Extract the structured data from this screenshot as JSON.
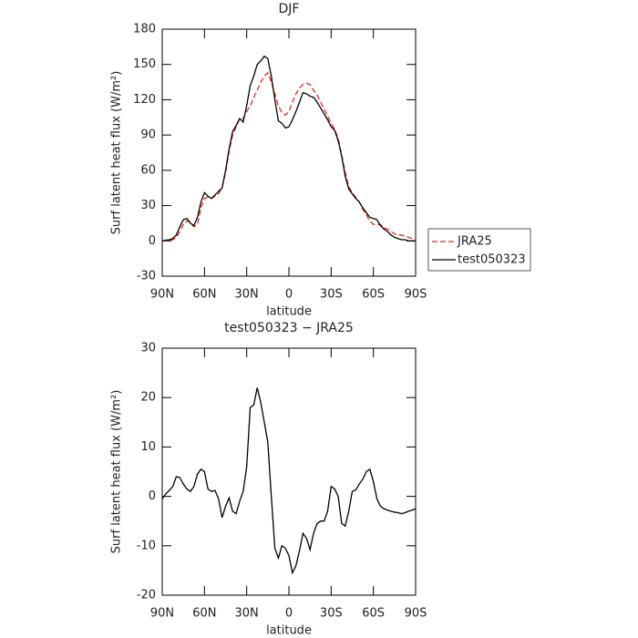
{
  "chart_data": [
    {
      "type": "line",
      "title": "DJF",
      "xlabel": "latitude",
      "ylabel": "Surf latent heat flux (W/m²)",
      "x": [
        90,
        87.5,
        85,
        82.5,
        80,
        77.5,
        75,
        72.5,
        70,
        67.5,
        65,
        62.5,
        60,
        57.5,
        55,
        52.5,
        50,
        47.5,
        45,
        42.5,
        40,
        37.5,
        35,
        32.5,
        30,
        27.5,
        25,
        22.5,
        20,
        17.5,
        15,
        12.5,
        10,
        7.5,
        5,
        2.5,
        0,
        -2.5,
        -5,
        -7.5,
        -10,
        -12.5,
        -15,
        -17.5,
        -20,
        -22.5,
        -25,
        -27.5,
        -30,
        -32.5,
        -35,
        -37.5,
        -40,
        -42.5,
        -45,
        -47.5,
        -50,
        -52.5,
        -55,
        -57.5,
        -60,
        -62.5,
        -65,
        -67.5,
        -70,
        -72.5,
        -75,
        -77.5,
        -80,
        -82.5,
        -85,
        -87.5,
        -90
      ],
      "series": [
        {
          "name": "JRA25",
          "color": "#e8261c",
          "line_style": "dashed",
          "values": [
            0,
            0,
            0.5,
            1,
            3,
            8,
            14,
            17,
            16,
            12,
            14,
            28,
            36,
            37,
            36,
            38,
            40,
            45,
            58,
            76,
            90,
            97,
            104,
            104,
            110,
            115,
            122,
            128,
            135,
            140,
            143,
            135,
            125,
            115,
            109,
            107,
            110,
            118,
            125,
            130,
            133,
            134,
            133,
            128,
            124,
            118,
            112,
            106,
            100,
            95,
            87,
            73,
            58,
            46,
            41,
            37,
            33,
            27,
            22,
            17,
            14,
            14,
            14,
            11,
            10,
            8,
            6,
            5,
            5,
            4,
            3,
            2,
            2
          ]
        },
        {
          "name": "test050323",
          "color": "#000000",
          "line_style": "solid",
          "values": [
            0,
            0.5,
            1,
            2,
            5,
            12,
            18,
            19,
            15,
            13,
            20,
            33,
            41,
            38,
            36,
            39,
            42,
            45,
            60,
            78,
            93,
            98,
            104,
            101,
            115,
            132,
            140,
            150,
            153,
            157,
            155,
            140,
            120,
            102,
            100,
            96,
            97,
            103,
            110,
            118,
            126,
            125,
            123,
            122,
            118,
            113,
            108,
            103,
            97,
            94,
            85,
            72,
            55,
            44,
            40,
            36,
            33,
            28,
            24,
            20,
            19,
            18,
            13,
            10,
            8,
            5,
            3,
            2,
            1,
            1,
            0,
            0,
            0
          ]
        }
      ],
      "xlim": [
        90,
        -90
      ],
      "xticks": [
        {
          "value": 90,
          "label": "90N"
        },
        {
          "value": 60,
          "label": "60N"
        },
        {
          "value": 30,
          "label": "30N"
        },
        0,
        {
          "value": -30,
          "label": "30S"
        },
        {
          "value": -60,
          "label": "60S"
        },
        {
          "value": -90,
          "label": "90S"
        }
      ],
      "ylim": [
        -30,
        180
      ],
      "yticks": [
        -30,
        0,
        30,
        60,
        90,
        120,
        150,
        180
      ],
      "legend": "right"
    },
    {
      "type": "line",
      "title": "test050323 − JRA25",
      "xlabel": "latitude",
      "ylabel": "Surf latent heat flux (W/m²)",
      "x": [
        90,
        87.5,
        85,
        82.5,
        80,
        77.5,
        75,
        72.5,
        70,
        67.5,
        65,
        62.5,
        60,
        57.5,
        55,
        52.5,
        50,
        47.5,
        45,
        42.5,
        40,
        37.5,
        35,
        32.5,
        30,
        27.5,
        25,
        22.5,
        20,
        17.5,
        15,
        12.5,
        10,
        7.5,
        5,
        2.5,
        0,
        -2.5,
        -5,
        -7.5,
        -10,
        -12.5,
        -15,
        -17.5,
        -20,
        -22.5,
        -25,
        -27.5,
        -30,
        -32.5,
        -35,
        -37.5,
        -40,
        -42.5,
        -45,
        -47.5,
        -50,
        -52.5,
        -55,
        -57.5,
        -60,
        -62.5,
        -65,
        -67.5,
        -70,
        -72.5,
        -75,
        -77.5,
        -80,
        -82.5,
        -85,
        -87.5,
        -90
      ],
      "series": [
        {
          "color": "#000000",
          "line_style": "solid",
          "values": [
            -0.5,
            0.5,
            1.2,
            2,
            4,
            3.8,
            2.5,
            1.5,
            1,
            2,
            4.5,
            5.5,
            5,
            1.5,
            1,
            1.2,
            -0.5,
            -4.3,
            -2,
            -0.3,
            -3,
            -3.5,
            -1,
            1,
            6,
            18,
            18.5,
            22,
            19,
            15,
            11,
            0,
            -10.5,
            -12.5,
            -10,
            -10.5,
            -12,
            -15.5,
            -14,
            -11,
            -7.5,
            -8.5,
            -10.8,
            -7.5,
            -5.5,
            -5,
            -5,
            -3,
            2,
            1.5,
            0,
            -5.5,
            -6,
            -3,
            1,
            1.3,
            2.5,
            3.5,
            5,
            5.5,
            3,
            -0.5,
            -2,
            -2.5,
            -2.8,
            -3,
            -3.2,
            -3.3,
            -3.5,
            -3.3,
            -3,
            -2.8,
            -2.5
          ]
        }
      ],
      "xlim": [
        90,
        -90
      ],
      "xticks": [
        {
          "value": 90,
          "label": "90N"
        },
        {
          "value": 60,
          "label": "60N"
        },
        {
          "value": 30,
          "label": "30N"
        },
        0,
        {
          "value": -30,
          "label": "30S"
        },
        {
          "value": -60,
          "label": "60S"
        },
        {
          "value": -90,
          "label": "90S"
        }
      ],
      "ylim": [
        -20,
        30
      ],
      "yticks": [
        -20,
        -10,
        0,
        10,
        20,
        30
      ]
    }
  ]
}
